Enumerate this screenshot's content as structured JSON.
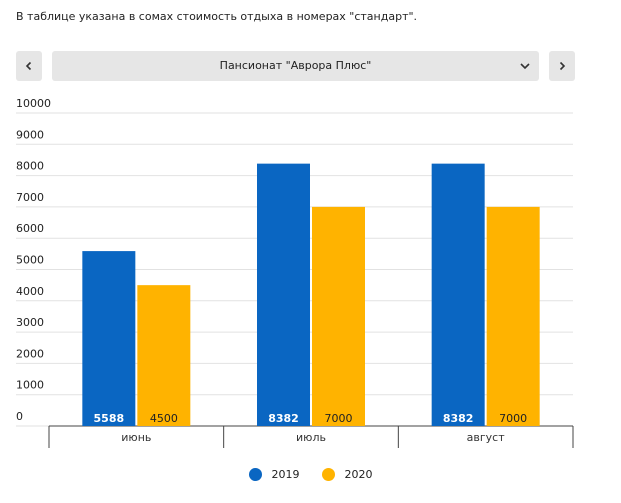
{
  "caption": "В таблице указана в сомах стоимость отдыха в номерах \"стандарт\".",
  "selector": {
    "value": "Пансионат \"Аврора Плюс\""
  },
  "icons": {
    "prev": "chevron-left-icon",
    "next": "chevron-right-icon",
    "dropdown": "chevron-down-icon"
  },
  "colors": {
    "series_2019": "#0a66c2",
    "series_2020": "#ffb300",
    "control_bg": "#e6e6e6"
  },
  "chart_data": {
    "type": "bar",
    "categories": [
      "июнь",
      "июль",
      "август"
    ],
    "series": [
      {
        "name": "2019",
        "values": [
          5588,
          8382,
          8382
        ],
        "color": "#0a66c2"
      },
      {
        "name": "2020",
        "values": [
          4500,
          7000,
          7000
        ],
        "color": "#ffb300"
      }
    ],
    "ylim": [
      0,
      10000
    ],
    "yticks": [
      0,
      1000,
      2000,
      3000,
      4000,
      5000,
      6000,
      7000,
      8000,
      9000,
      10000
    ],
    "grid": true,
    "legend": "bottom",
    "data_labels": true
  }
}
